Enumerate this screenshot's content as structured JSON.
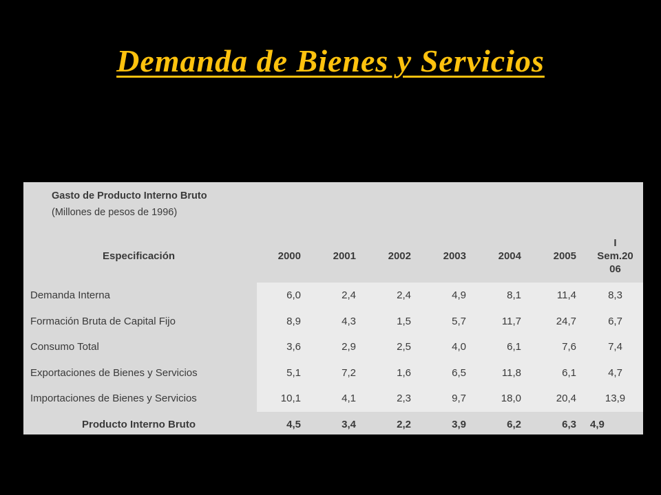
{
  "title": "Demanda de Bienes y Servicios",
  "table": {
    "caption": [
      "Gasto de Producto Interno Bruto",
      "(Millones de pesos de 1996)"
    ],
    "header": [
      "Especificación",
      "2000",
      "2001",
      "2002",
      "2003",
      "2004",
      "2005",
      "I Sem.2006"
    ],
    "rows": [
      [
        "Demanda Interna",
        "6,0",
        "2,4",
        "2,4",
        "4,9",
        "8,1",
        "11,4",
        "8,3"
      ],
      [
        "Formación Bruta de Capital Fijo",
        "8,9",
        "4,3",
        "1,5",
        "5,7",
        "11,7",
        "24,7",
        "6,7"
      ],
      [
        "Consumo Total",
        "3,6",
        "2,9",
        "2,5",
        "4,0",
        "6,1",
        "7,6",
        "7,4"
      ],
      [
        "Exportaciones de Bienes y Servicios",
        "5,1",
        "7,2",
        "1,6",
        "6,5",
        "11,8",
        "6,1",
        "4,7"
      ],
      [
        "Importaciones de Bienes y Servicios",
        "10,1",
        "4,1",
        "2,3",
        "9,7",
        "18,0",
        "20,4",
        "13,9"
      ],
      [
        "Producto Interno Bruto",
        "4,5",
        "3,4",
        "2,2",
        "3,9",
        "6,2",
        "6,3",
        "4,9"
      ]
    ]
  }
}
